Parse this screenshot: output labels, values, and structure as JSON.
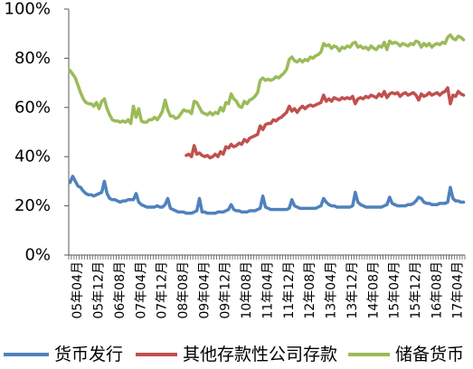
{
  "chart_data": {
    "type": "line",
    "x": [
      "05年01月",
      "05年02月",
      "05年03月",
      "05年04月",
      "05年05月",
      "05年06月",
      "05年07月",
      "05年08月",
      "05年09月",
      "05年10月",
      "05年11月",
      "05年12月",
      "06年01月",
      "06年02月",
      "06年03月",
      "06年04月",
      "06年05月",
      "06年06月",
      "06年07月",
      "06年08月",
      "06年09月",
      "06年10月",
      "06年11月",
      "06年12月",
      "07年01月",
      "07年02月",
      "07年03月",
      "07年04月",
      "07年05月",
      "07年06月",
      "07年07月",
      "07年08月",
      "07年09月",
      "07年10月",
      "07年11月",
      "07年12月",
      "08年01月",
      "08年02月",
      "08年03月",
      "08年04月",
      "08年05月",
      "08年06月",
      "08年07月",
      "08年08月",
      "08年09月",
      "08年10月",
      "08年11月",
      "08年12月",
      "09年01月",
      "09年02月",
      "09年03月",
      "09年04月",
      "09年05月",
      "09年06月",
      "09年07月",
      "09年08月",
      "09年09月",
      "09年10月",
      "09年11月",
      "09年12月",
      "10年01月",
      "10年02月",
      "10年03月",
      "10年04月",
      "10年05月",
      "10年06月",
      "10年07月",
      "10年08月",
      "10年09月",
      "10年10月",
      "10年11月",
      "10年12月",
      "11年01月",
      "11年02月",
      "11年03月",
      "11年04月",
      "11年05月",
      "11年06月",
      "11年07月",
      "11年08月",
      "11年09月",
      "11年10月",
      "11年11月",
      "11年12月",
      "12年01月",
      "12年02月",
      "12年03月",
      "12年04月",
      "12年05月",
      "12年06月",
      "12年07月",
      "12年08月",
      "12年09月",
      "12年10月",
      "12年11月",
      "12年12月",
      "13年01月",
      "13年02月",
      "13年03月",
      "13年04月",
      "13年05月",
      "13年06月",
      "13年07月",
      "13年08月",
      "13年09月",
      "13年10月",
      "13年11月",
      "13年12月",
      "14年01月",
      "14年02月",
      "14年03月",
      "14年04月",
      "14年05月",
      "14年06月",
      "14年07月",
      "14年08月",
      "14年09月",
      "14年10月",
      "14年11月",
      "14年12月",
      "15年01月",
      "15年02月",
      "15年03月",
      "15年04月",
      "15年05月",
      "15年06月",
      "15年07月",
      "15年08月",
      "15年09月",
      "15年10月",
      "15年11月",
      "15年12月",
      "16年01月",
      "16年02月",
      "16年03月",
      "16年04月",
      "16年05月",
      "16年06月",
      "16年07月",
      "16年08月",
      "16年09月",
      "16年10月",
      "16年11月",
      "16年12月",
      "17年01月",
      "17年02月",
      "17年03月",
      "17年04月",
      "17年05月",
      "17年06月"
    ],
    "xtick_labels": [
      "05年04月",
      "05年12月",
      "06年08月",
      "07年04月",
      "07年12月",
      "08年08月",
      "09年04月",
      "09年12月",
      "10年08月",
      "11年04月",
      "11年12月",
      "12年08月",
      "13年04月",
      "13年12月",
      "14年08月",
      "15年04月",
      "15年12月",
      "16年08月",
      "17年04月"
    ],
    "ylim": [
      0,
      100
    ],
    "yticks": [
      0,
      20,
      40,
      60,
      80,
      100
    ],
    "ytick_labels": [
      "0%",
      "20%",
      "40%",
      "60%",
      "80%",
      "100%"
    ],
    "grid": false,
    "legend": "bottom",
    "series": [
      {
        "name": "货币发行",
        "color": "#4F81BD",
        "values": [
          29.5,
          32.0,
          30.0,
          28.0,
          27.5,
          26.0,
          25.0,
          24.5,
          24.5,
          24.0,
          24.5,
          25.0,
          25.5,
          30.0,
          25.0,
          23.0,
          22.5,
          22.5,
          22.0,
          21.5,
          22.0,
          22.0,
          22.5,
          22.5,
          22.5,
          25.0,
          21.5,
          20.5,
          20.0,
          19.5,
          19.5,
          19.5,
          19.5,
          20.0,
          19.5,
          19.5,
          20.5,
          23.0,
          19.0,
          18.5,
          18.0,
          17.5,
          17.5,
          17.5,
          17.0,
          17.0,
          17.0,
          17.5,
          18.0,
          23.0,
          17.5,
          17.5,
          17.0,
          17.0,
          17.0,
          17.0,
          17.5,
          17.5,
          17.5,
          18.0,
          18.5,
          20.5,
          18.5,
          18.0,
          18.0,
          17.5,
          17.5,
          17.5,
          18.0,
          18.0,
          18.0,
          18.5,
          19.0,
          24.0,
          19.5,
          19.0,
          18.5,
          18.5,
          18.5,
          18.5,
          18.5,
          18.5,
          18.5,
          19.0,
          22.5,
          20.0,
          19.5,
          19.0,
          19.0,
          19.0,
          19.0,
          19.0,
          19.0,
          19.0,
          19.5,
          20.0,
          23.0,
          21.5,
          20.5,
          20.0,
          20.0,
          19.5,
          19.5,
          19.5,
          19.5,
          19.5,
          19.5,
          20.0,
          25.5,
          21.5,
          20.5,
          20.0,
          19.5,
          19.5,
          19.5,
          19.5,
          19.5,
          19.5,
          19.5,
          20.0,
          20.5,
          23.5,
          21.0,
          20.5,
          20.0,
          20.0,
          20.0,
          20.0,
          20.5,
          20.5,
          21.0,
          22.0,
          23.5,
          23.0,
          21.5,
          21.0,
          21.0,
          20.5,
          20.5,
          20.5,
          21.0,
          21.0,
          21.0,
          21.5,
          27.5,
          23.0,
          22.0,
          22.0,
          21.5,
          21.5
        ]
      },
      {
        "name": "其他存款性公司存款",
        "color": "#C0504D",
        "values": [
          null,
          null,
          null,
          null,
          null,
          null,
          null,
          null,
          null,
          null,
          null,
          null,
          null,
          null,
          null,
          null,
          null,
          null,
          null,
          null,
          null,
          null,
          null,
          null,
          null,
          null,
          null,
          null,
          null,
          null,
          null,
          null,
          null,
          null,
          null,
          null,
          null,
          null,
          null,
          null,
          null,
          null,
          null,
          null,
          40.5,
          41.0,
          40.0,
          44.5,
          41.0,
          41.5,
          40.5,
          40.0,
          40.5,
          39.5,
          40.0,
          41.0,
          40.0,
          42.0,
          41.0,
          44.0,
          43.5,
          45.0,
          44.0,
          44.5,
          45.5,
          45.0,
          47.0,
          46.0,
          47.5,
          48.0,
          48.5,
          49.0,
          52.5,
          51.0,
          53.0,
          53.5,
          53.5,
          55.0,
          54.5,
          55.5,
          56.0,
          57.0,
          58.0,
          60.5,
          58.5,
          59.5,
          58.0,
          59.5,
          60.5,
          59.5,
          60.5,
          61.0,
          60.5,
          61.0,
          61.5,
          62.0,
          65.0,
          62.5,
          63.5,
          62.5,
          64.0,
          63.5,
          63.0,
          64.0,
          63.5,
          64.0,
          63.5,
          64.5,
          61.5,
          63.5,
          64.0,
          63.5,
          64.5,
          64.0,
          65.0,
          64.5,
          64.0,
          65.5,
          64.5,
          66.5,
          64.0,
          65.5,
          66.0,
          65.5,
          66.0,
          64.5,
          65.5,
          66.0,
          65.0,
          65.5,
          66.0,
          65.0,
          63.0,
          65.5,
          64.5,
          65.0,
          66.0,
          65.0,
          65.5,
          66.0,
          65.0,
          66.0,
          66.5,
          68.0,
          61.5,
          65.0,
          64.5,
          66.5,
          65.5,
          65.0
        ]
      },
      {
        "name": "储备货币",
        "color": "#9BBB59",
        "values": [
          75.0,
          73.5,
          72.0,
          69.0,
          66.0,
          63.5,
          62.0,
          61.5,
          61.5,
          60.5,
          62.0,
          59.5,
          62.5,
          63.5,
          59.5,
          57.0,
          55.0,
          54.5,
          54.5,
          54.0,
          54.5,
          54.0,
          55.0,
          53.5,
          60.5,
          56.0,
          59.5,
          54.5,
          54.0,
          54.0,
          55.0,
          55.0,
          56.0,
          55.0,
          56.5,
          58.5,
          63.0,
          59.0,
          56.5,
          56.5,
          55.5,
          56.0,
          57.5,
          59.0,
          58.5,
          58.5,
          57.5,
          62.5,
          62.0,
          60.0,
          58.0,
          57.5,
          57.0,
          58.0,
          57.0,
          58.0,
          57.5,
          60.0,
          58.5,
          62.0,
          61.5,
          65.5,
          63.5,
          62.5,
          60.5,
          60.0,
          62.5,
          61.5,
          63.0,
          63.5,
          64.5,
          66.0,
          71.0,
          72.0,
          71.0,
          71.5,
          71.0,
          71.5,
          72.5,
          72.0,
          73.0,
          74.0,
          75.5,
          79.5,
          80.5,
          79.0,
          78.5,
          79.5,
          78.5,
          79.5,
          79.0,
          80.5,
          80.0,
          81.0,
          81.5,
          82.5,
          86.0,
          85.0,
          85.5,
          84.0,
          85.0,
          84.5,
          83.0,
          84.5,
          84.0,
          85.0,
          84.5,
          86.0,
          86.5,
          84.5,
          85.0,
          84.0,
          84.5,
          83.5,
          85.0,
          84.0,
          83.5,
          85.0,
          84.5,
          86.5,
          83.5,
          87.0,
          86.0,
          86.5,
          86.0,
          85.0,
          86.0,
          85.5,
          85.0,
          86.0,
          85.5,
          87.0,
          86.5,
          84.5,
          86.0,
          85.0,
          86.0,
          84.5,
          85.5,
          86.0,
          85.5,
          86.5,
          86.0,
          88.5,
          89.5,
          88.0,
          87.5,
          89.0,
          88.5,
          87.5
        ]
      }
    ]
  }
}
